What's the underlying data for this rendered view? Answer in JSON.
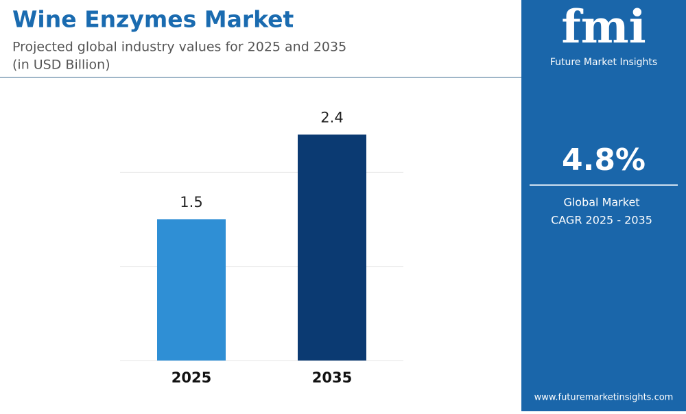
{
  "chart_data": {
    "type": "bar",
    "title": "Wine Enzymes Market",
    "subtitle": [
      "Projected global industry values for 2025 and 2035",
      "(in USD Billion)"
    ],
    "categories": [
      "2025",
      "2035"
    ],
    "values": [
      1.5,
      2.4
    ],
    "colors": [
      "#2f8fd5",
      "#0b3a72"
    ],
    "ylim": [
      0,
      3
    ],
    "yticks": [
      0,
      1,
      2
    ],
    "grid": true
  },
  "sidebar": {
    "logo": "fmi",
    "brand": "Future Market Insights",
    "cagr": "4.8%",
    "cagr_label": [
      "Global Market",
      "CAGR 2025 - 2035"
    ],
    "url": "www.futuremarketinsights.com"
  }
}
